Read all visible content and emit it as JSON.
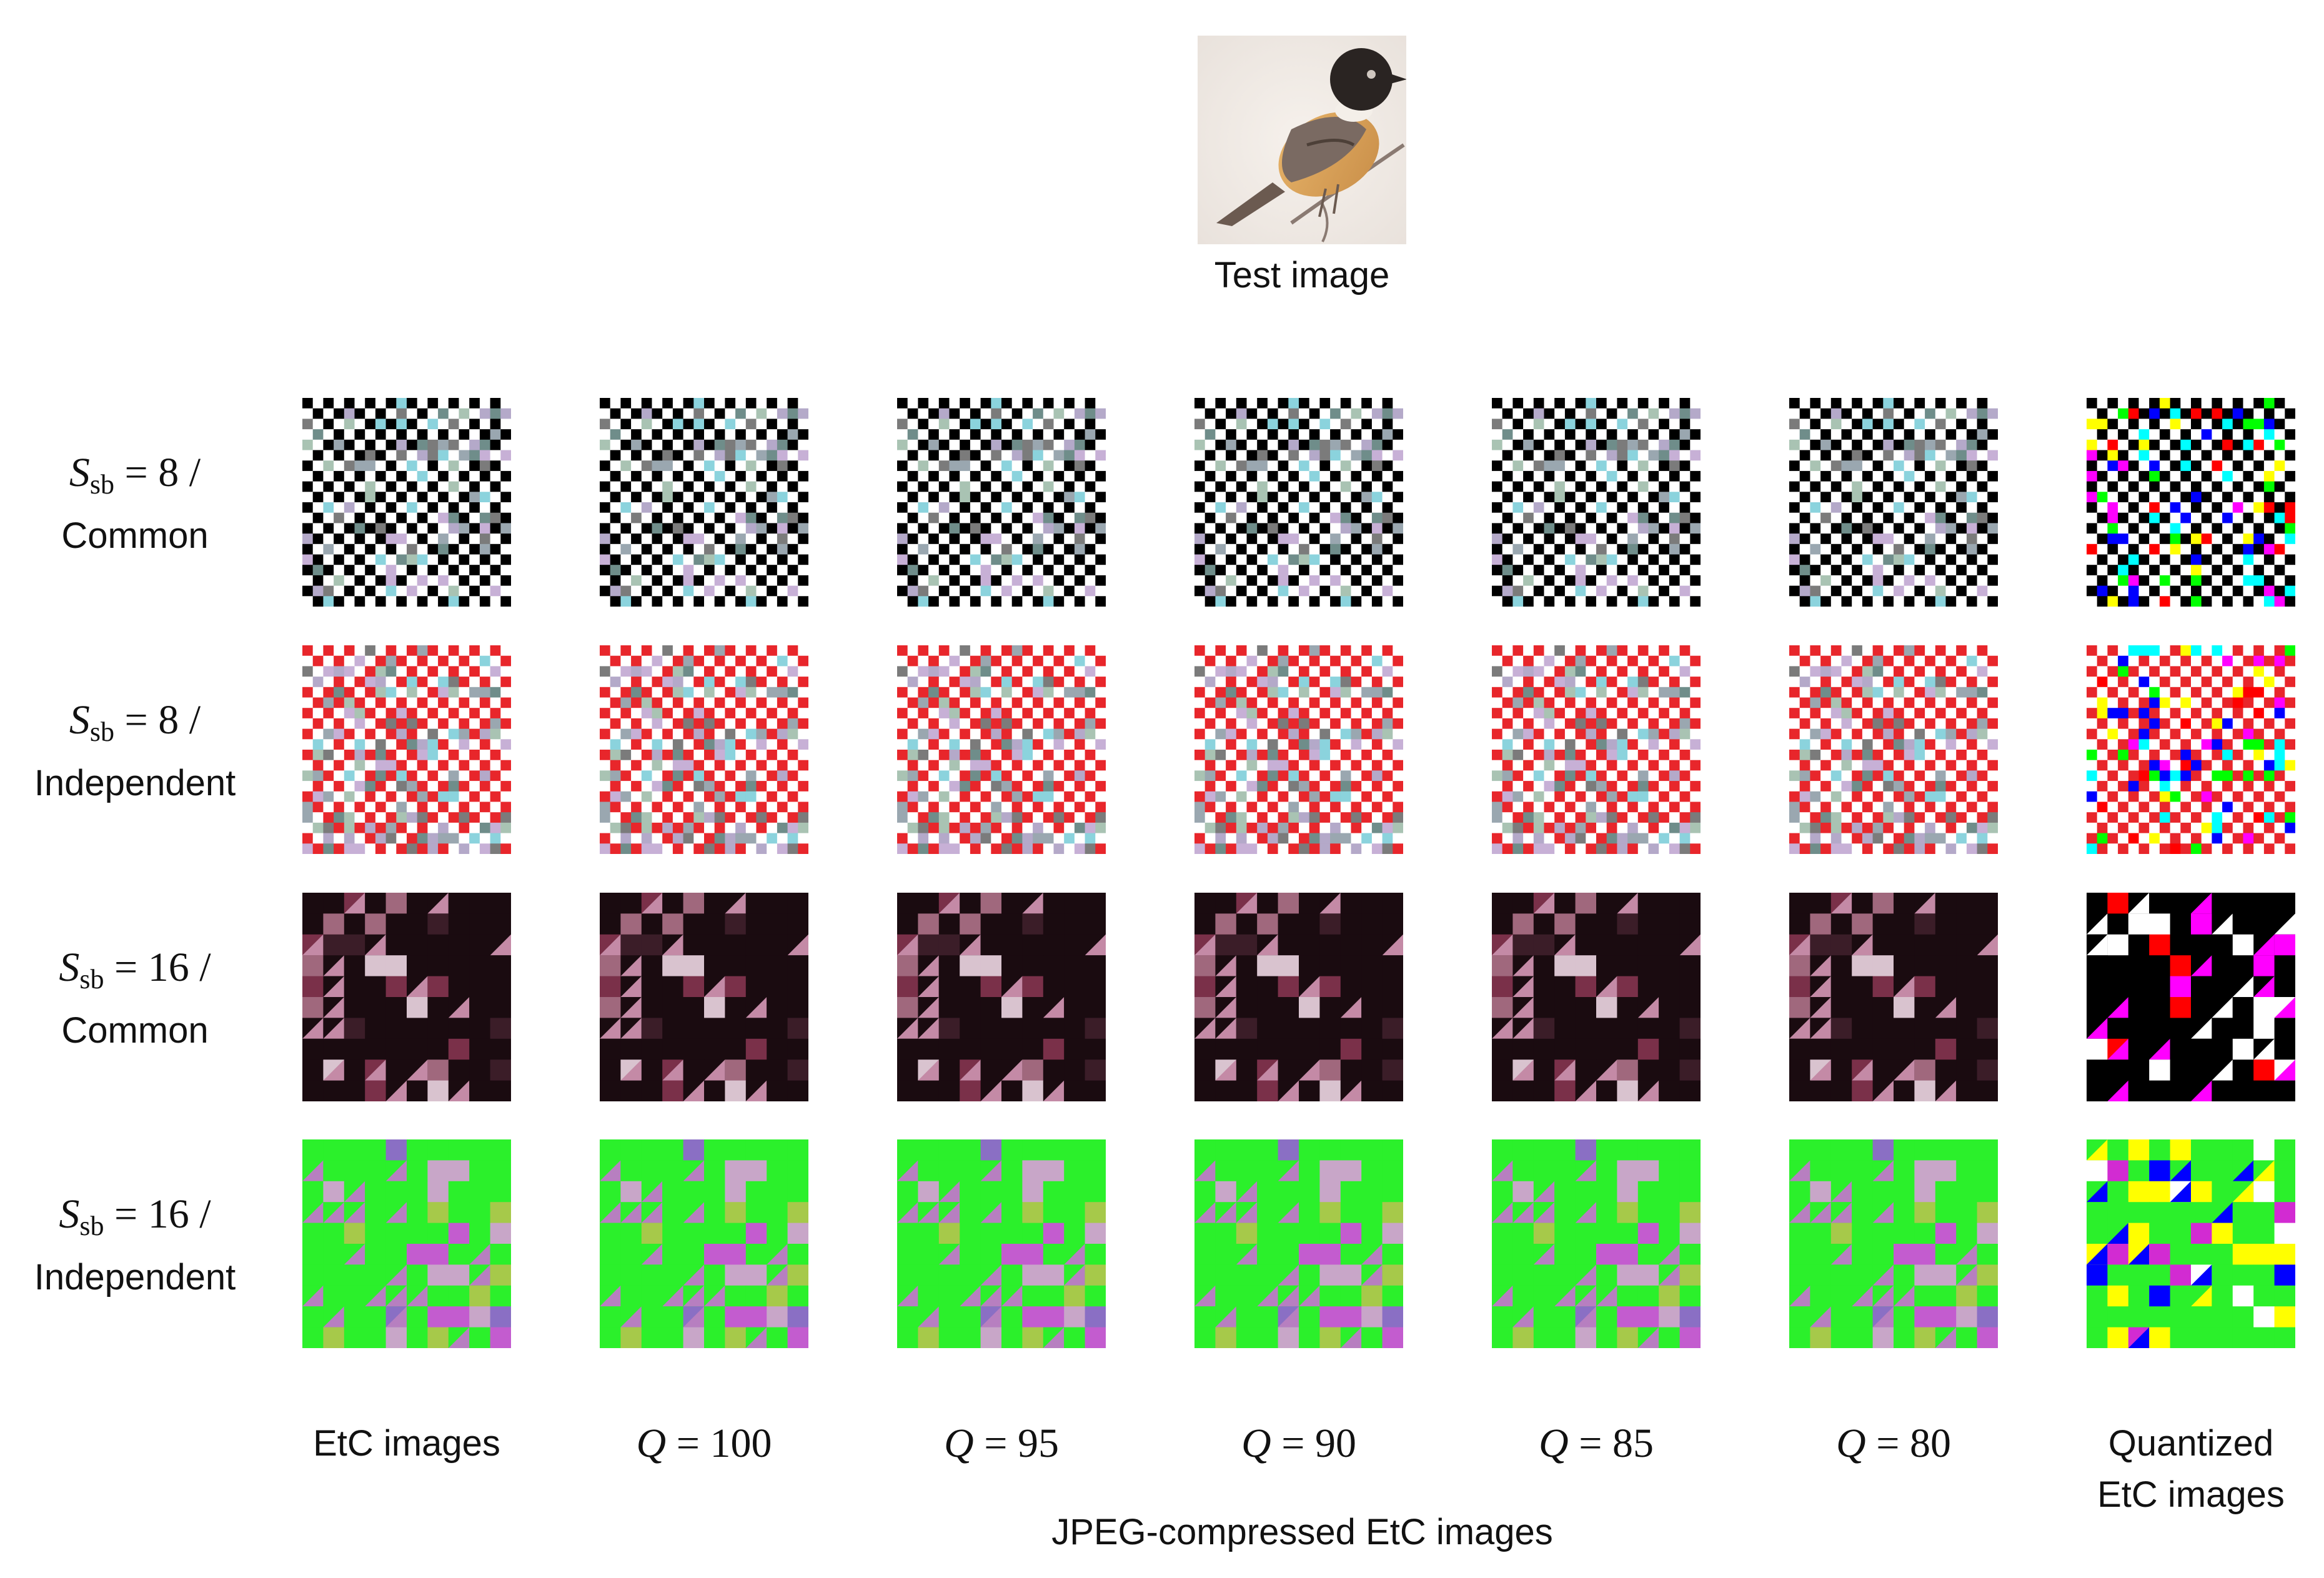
{
  "test_image": {
    "caption": "Test image"
  },
  "rows": [
    {
      "symbol": "S",
      "subscript": "sb",
      "value_text": "= 8 /",
      "mode": "Common",
      "scheme": "bw"
    },
    {
      "symbol": "S",
      "subscript": "sb",
      "value_text": "= 8 /",
      "mode": "Independent",
      "scheme": "rw"
    },
    {
      "symbol": "S",
      "subscript": "sb",
      "value_text": "= 16 /",
      "mode": "Common",
      "scheme": "dark"
    },
    {
      "symbol": "S",
      "subscript": "sb",
      "value_text": "= 16 /",
      "mode": "Independent",
      "scheme": "green"
    }
  ],
  "columns": [
    {
      "plain": "EtC images"
    },
    {
      "var": "Q",
      "rest": "= 100"
    },
    {
      "var": "Q",
      "rest": "= 95"
    },
    {
      "var": "Q",
      "rest": "= 90"
    },
    {
      "var": "Q",
      "rest": "= 85"
    },
    {
      "var": "Q",
      "rest": "= 80"
    },
    {
      "plain": "Quantized",
      "plain2": "EtC images"
    }
  ],
  "group_caption": "JPEG-compressed EtC images",
  "colors": {
    "red": "#e8262b",
    "green": "#2bf02b",
    "dark": "#1a0b10",
    "magenta": "#d22bd2"
  }
}
